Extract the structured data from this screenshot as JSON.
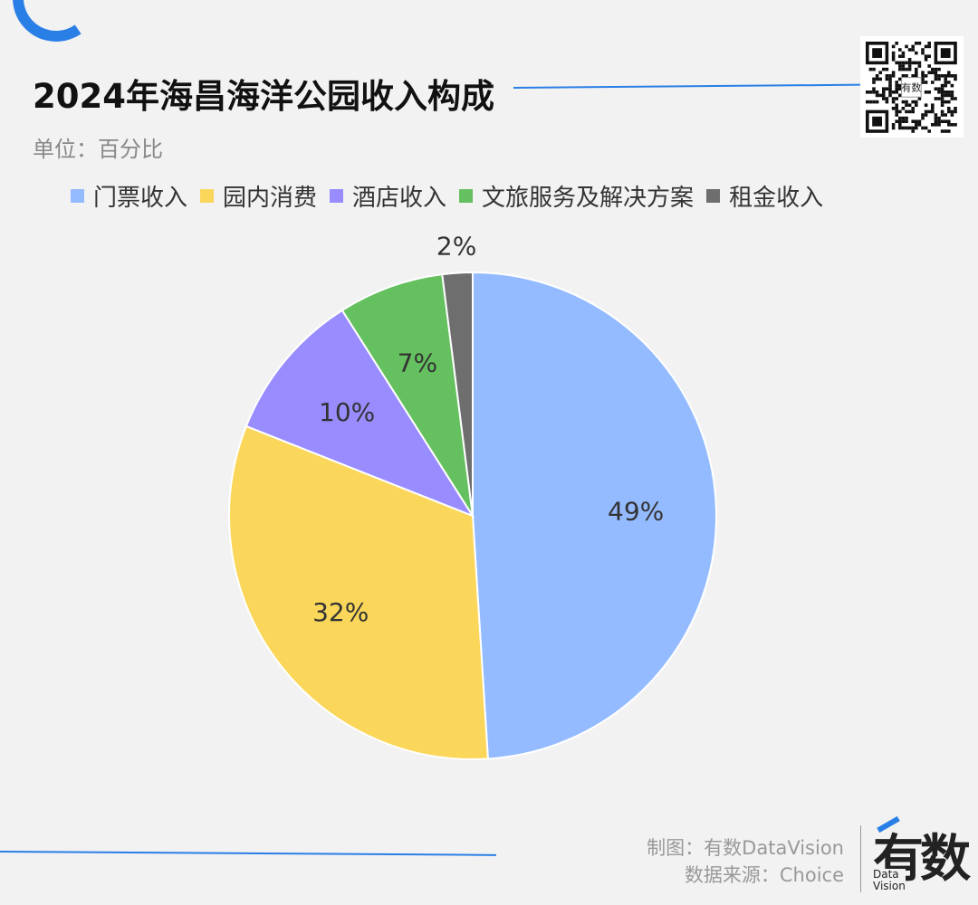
{
  "title": "2024年海昌海洋公园收入构成",
  "unit": "单位：百分比",
  "colors": {
    "accent": "#2a7fe6",
    "slices": [
      "#94bbff",
      "#fad75a",
      "#998cfe",
      "#65c05f",
      "#6e6e6e"
    ]
  },
  "chart_data": {
    "type": "pie",
    "categories": [
      "门票收入",
      "园内消费",
      "酒店收入",
      "文旅服务及解决方案",
      "租金收入"
    ],
    "values": [
      49,
      32,
      10,
      7,
      2
    ],
    "labels": [
      "49%",
      "32%",
      "10%",
      "7%",
      "2%"
    ],
    "legend_position": "top",
    "start_angle": "12 o'clock",
    "direction": "clockwise"
  },
  "footer": {
    "made_by": "制图：有数DataVision",
    "source": "数据来源：Choice",
    "brand_main": "有数",
    "brand_line1": "Data",
    "brand_line2": "Vision"
  },
  "qr_label": "有数"
}
